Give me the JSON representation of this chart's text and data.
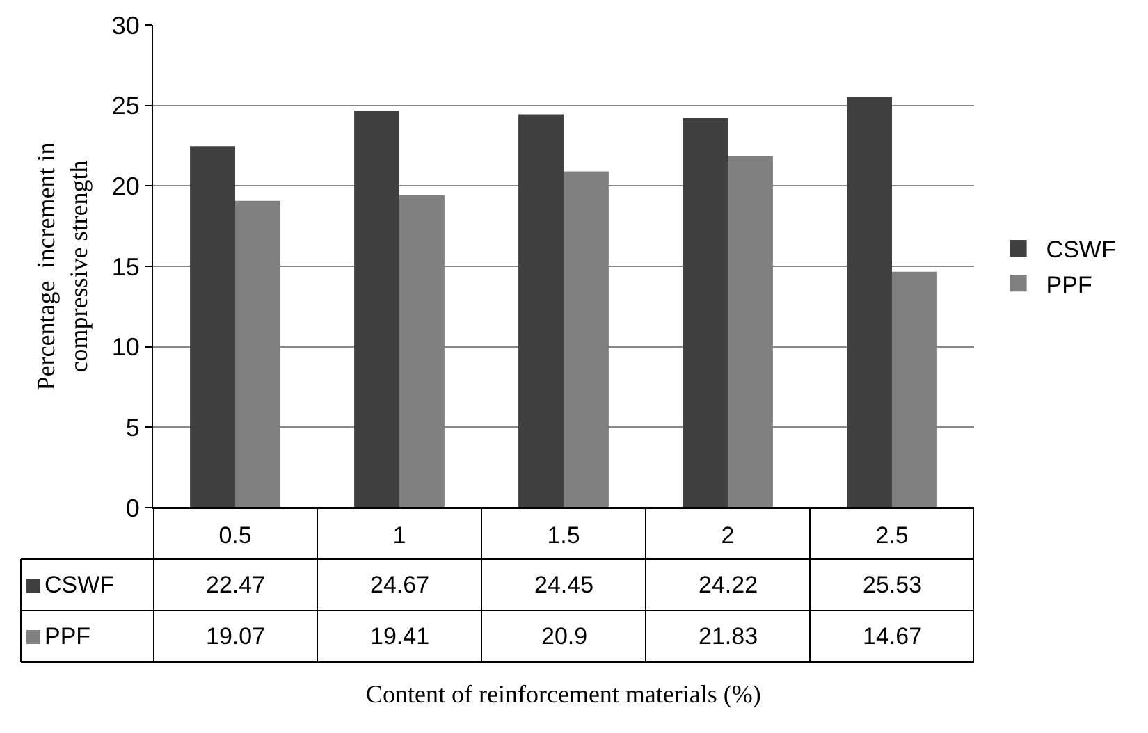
{
  "chart_data": {
    "type": "bar",
    "annotations": [
      "Content of reinforcement materials (%)"
    ],
    "ylabel": "Percentage  increment in\ncompressive strength",
    "categories": [
      "0.5",
      "1",
      "1.5",
      "2",
      "2.5"
    ],
    "series": [
      {
        "name": "CSWF",
        "color": "#404040",
        "values": [
          22.47,
          24.67,
          24.45,
          24.22,
          25.53
        ]
      },
      {
        "name": "PPF",
        "color": "#808080",
        "values": [
          19.07,
          19.41,
          20.9,
          21.83,
          14.67
        ]
      }
    ],
    "ylim": [
      0,
      30
    ],
    "yticks": [
      0,
      5,
      10,
      15,
      20,
      25,
      30
    ],
    "grid": "y",
    "legend": "right",
    "data_labels": true
  }
}
